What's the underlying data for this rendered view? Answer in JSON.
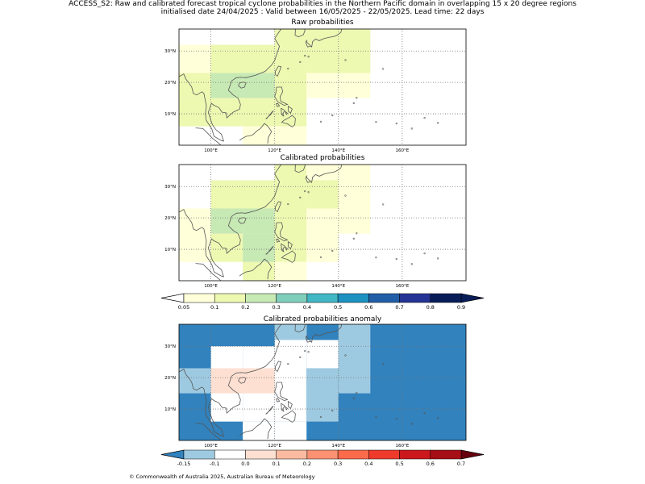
{
  "title_line1": "ACCESS_S2: Raw and calibrated forecast tropical cyclone probabilities in the Northern Pacific domain in overlapping 15 x 20 degree regions",
  "title_line2": "initialised date 24/04/2025 :  Valid between 16/05/2025 - 22/05/2025. Lead time: 22 days",
  "footer": "© Commonwealth of Australia 2025, Australian Bureau of Meteorology",
  "map_extent": {
    "lon": [
      90,
      180
    ],
    "lat": [
      0,
      37
    ]
  },
  "lon_ticks": [
    {
      "lon": 100,
      "label": "100°E"
    },
    {
      "lon": 120,
      "label": "120°E"
    },
    {
      "lon": 140,
      "label": "140°E"
    },
    {
      "lon": 160,
      "label": "160°E"
    }
  ],
  "lat_ticks": [
    {
      "lat": 10,
      "label": "10°N"
    },
    {
      "lat": 20,
      "label": "20°N"
    },
    {
      "lat": 30,
      "label": "30°N"
    }
  ],
  "colors": {
    "prob": [
      "#ffffd9",
      "#edf8b1",
      "#c7e9b4",
      "#7fcdbb",
      "#41b6c4",
      "#1d91c0",
      "#225ea8",
      "#253494",
      "#081d58"
    ],
    "prob_under": "#ffffff",
    "prob_over": "#081d58",
    "anom": [
      "#9ecae1",
      "#ffffff",
      "#fee0d2",
      "#fcbba1",
      "#fc9272",
      "#fb6a4a",
      "#ef3b2c",
      "#cb181d",
      "#a50f15"
    ],
    "anom_under": "#3182bd",
    "anom_over": "#67000d"
  },
  "cbar_prob_ticks": [
    "0.05",
    "0.1",
    "0.2",
    "0.3",
    "0.4",
    "0.5",
    "0.6",
    "0.7",
    "0.8",
    "0.9"
  ],
  "cbar_anom_ticks": [
    "-0.15",
    "-0.1",
    "0.0",
    "0.1",
    "0.2",
    "0.3",
    "0.4",
    "0.5",
    "0.6",
    "0.7"
  ],
  "panels": [
    {
      "title": "Raw probabilities",
      "palette": "prob",
      "cells": [
        {
          "lon": [
            90,
            100
          ],
          "lat": [
            28,
            32
          ],
          "value": 0.07
        },
        {
          "lon": [
            90,
            100
          ],
          "lat": [
            23,
            28
          ],
          "value": 0.07
        },
        {
          "lon": [
            90,
            100
          ],
          "lat": [
            15,
            23
          ],
          "value": 0.12
        },
        {
          "lon": [
            90,
            100
          ],
          "lat": [
            6,
            15
          ],
          "value": 0.12
        },
        {
          "lon": [
            100,
            120
          ],
          "lat": [
            30,
            32
          ],
          "value": 0.12
        },
        {
          "lon": [
            100,
            120
          ],
          "lat": [
            23,
            30
          ],
          "value": 0.12
        },
        {
          "lon": [
            100,
            110
          ],
          "lat": [
            15,
            23
          ],
          "value": 0.25
        },
        {
          "lon": [
            110,
            120
          ],
          "lat": [
            15,
            23
          ],
          "value": 0.25
        },
        {
          "lon": [
            100,
            110
          ],
          "lat": [
            6,
            15
          ],
          "value": 0.12
        },
        {
          "lon": [
            110,
            120
          ],
          "lat": [
            6,
            15
          ],
          "value": 0.12
        },
        {
          "lon": [
            110,
            120
          ],
          "lat": [
            0,
            6
          ],
          "value": 0.07
        },
        {
          "lon": [
            120,
            130
          ],
          "lat": [
            32,
            37
          ],
          "value": 0.12
        },
        {
          "lon": [
            130,
            150
          ],
          "lat": [
            32,
            37
          ],
          "value": 0.12
        },
        {
          "lon": [
            120,
            130
          ],
          "lat": [
            6,
            32
          ],
          "value": 0.12
        },
        {
          "lon": [
            130,
            140
          ],
          "lat": [
            23,
            32
          ],
          "value": 0.12
        },
        {
          "lon": [
            140,
            150
          ],
          "lat": [
            23,
            32
          ],
          "value": 0.12
        },
        {
          "lon": [
            130,
            140
          ],
          "lat": [
            15,
            23
          ],
          "value": 0.07
        },
        {
          "lon": [
            140,
            150
          ],
          "lat": [
            15,
            23
          ],
          "value": 0.07
        },
        {
          "lon": [
            120,
            130
          ],
          "lat": [
            0,
            6
          ],
          "value": 0.07
        }
      ]
    },
    {
      "title": "Calibrated probabilities",
      "palette": "prob",
      "cells": [
        {
          "lon": [
            90,
            100
          ],
          "lat": [
            15,
            23
          ],
          "value": 0.07
        },
        {
          "lon": [
            90,
            100
          ],
          "lat": [
            6,
            15
          ],
          "value": 0.07
        },
        {
          "lon": [
            100,
            120
          ],
          "lat": [
            23,
            32
          ],
          "value": 0.12
        },
        {
          "lon": [
            100,
            110
          ],
          "lat": [
            15,
            23
          ],
          "value": 0.25
        },
        {
          "lon": [
            110,
            120
          ],
          "lat": [
            15,
            23
          ],
          "value": 0.25
        },
        {
          "lon": [
            100,
            110
          ],
          "lat": [
            6,
            15
          ],
          "value": 0.12
        },
        {
          "lon": [
            110,
            120
          ],
          "lat": [
            6,
            15
          ],
          "value": 0.25
        },
        {
          "lon": [
            110,
            120
          ],
          "lat": [
            0,
            6
          ],
          "value": 0.12
        },
        {
          "lon": [
            120,
            130
          ],
          "lat": [
            32,
            37
          ],
          "value": 0.12
        },
        {
          "lon": [
            130,
            150
          ],
          "lat": [
            32,
            37
          ],
          "value": 0.07
        },
        {
          "lon": [
            120,
            130
          ],
          "lat": [
            6,
            32
          ],
          "value": 0.12
        },
        {
          "lon": [
            130,
            140
          ],
          "lat": [
            23,
            32
          ],
          "value": 0.12
        },
        {
          "lon": [
            140,
            150
          ],
          "lat": [
            23,
            32
          ],
          "value": 0.07
        },
        {
          "lon": [
            130,
            140
          ],
          "lat": [
            6,
            23
          ],
          "value": 0.07
        },
        {
          "lon": [
            140,
            150
          ],
          "lat": [
            15,
            23
          ],
          "value": 0.07
        },
        {
          "lon": [
            120,
            130
          ],
          "lat": [
            0,
            6
          ],
          "value": 0.07
        }
      ]
    },
    {
      "title": "Calibrated probabilities anomaly",
      "palette": "anom",
      "cells": [
        {
          "lon": [
            90,
            180
          ],
          "lat": [
            0,
            37
          ],
          "value": -0.2
        },
        {
          "lon": [
            90,
            100
          ],
          "lat": [
            15,
            23
          ],
          "value": -0.12
        },
        {
          "lon": [
            100,
            110
          ],
          "lat": [
            6,
            30
          ],
          "value": -0.05
        },
        {
          "lon": [
            110,
            120
          ],
          "lat": [
            6,
            30
          ],
          "value": -0.05
        },
        {
          "lon": [
            100,
            120
          ],
          "lat": [
            15,
            23
          ],
          "value": 0.05
        },
        {
          "lon": [
            110,
            120
          ],
          "lat": [
            0,
            6
          ],
          "value": -0.05
        },
        {
          "lon": [
            120,
            130
          ],
          "lat": [
            32,
            37
          ],
          "value": -0.05
        },
        {
          "lon": [
            120,
            130
          ],
          "lat": [
            6,
            32
          ],
          "value": -0.05
        },
        {
          "lon": [
            130,
            140
          ],
          "lat": [
            23,
            32
          ],
          "value": -0.05
        },
        {
          "lon": [
            120,
            130
          ],
          "lat": [
            0,
            6
          ],
          "value": -0.05
        },
        {
          "lon": [
            140,
            150
          ],
          "lat": [
            15,
            37
          ],
          "value": -0.12
        },
        {
          "lon": [
            130,
            140
          ],
          "lat": [
            6,
            23
          ],
          "value": -0.12
        },
        {
          "lon": [
            120,
            130
          ],
          "lat": [
            32,
            37
          ],
          "value": -0.12
        }
      ]
    }
  ]
}
